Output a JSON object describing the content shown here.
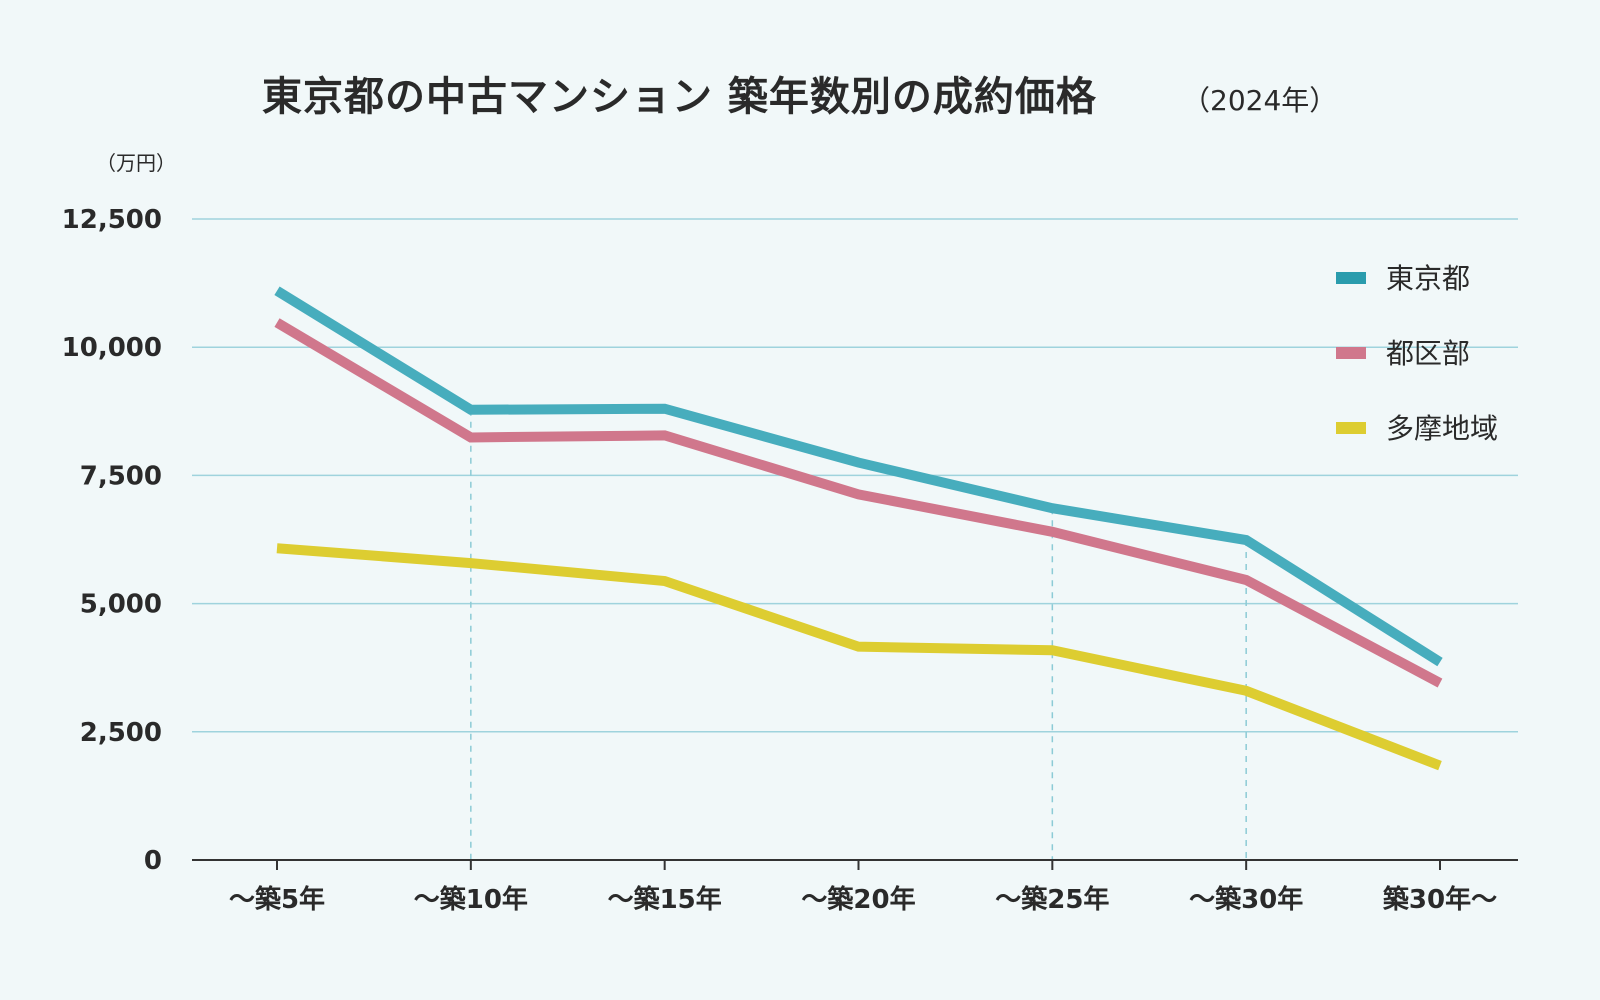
{
  "chart_data": {
    "type": "line",
    "title": "東京都の中古マンション 築年数別の成約価格",
    "subtitle": "（2024年）",
    "ylabel": "（万円）",
    "xlabel": "",
    "categories": [
      "～築5年",
      "～築10年",
      "～築15年",
      "～築20年",
      "～築25年",
      "～築30年",
      "築30年～"
    ],
    "ylim": [
      0,
      12500
    ],
    "yticks": [
      0,
      2500,
      5000,
      7500,
      10000,
      12500
    ],
    "ytick_labels": [
      "0",
      "2,500",
      "5,000",
      "7,500",
      "10,000",
      "12,500"
    ],
    "grid": true,
    "legend_position": "right",
    "series": [
      {
        "name": "東京都",
        "color": "#47adbd",
        "legend_color": "#2a9cad",
        "values": [
          11100,
          8780,
          8800,
          7750,
          6860,
          6240,
          3860
        ]
      },
      {
        "name": "都区部",
        "color": "#d0778c",
        "legend_color": "#d0778c",
        "values": [
          10480,
          8240,
          8280,
          7130,
          6400,
          5460,
          3450
        ]
      },
      {
        "name": "多摩地域",
        "color": "#ddcd31",
        "legend_color": "#ddcd31",
        "values": [
          6080,
          5790,
          5440,
          4160,
          4090,
          3300,
          1840
        ]
      }
    ],
    "dashed_guides_at": [
      1,
      4,
      5
    ]
  }
}
